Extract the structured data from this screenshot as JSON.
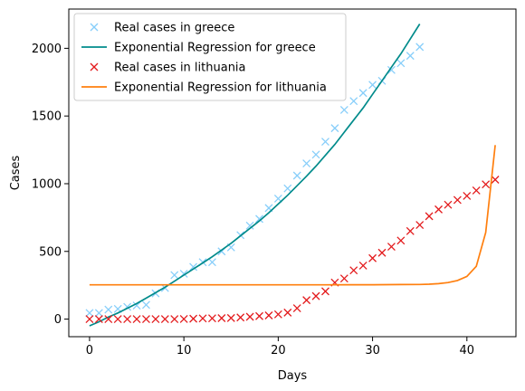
{
  "chart_data": {
    "type": "scatter",
    "title": "",
    "xlabel": "Days",
    "ylabel": "Cases",
    "xlim": [
      -2.2,
      45.2
    ],
    "ylim": [
      -130,
      2290
    ],
    "xticks": [
      0,
      10,
      20,
      30,
      40
    ],
    "yticks": [
      0,
      500,
      1000,
      1500,
      2000
    ],
    "grid": false,
    "legend_position": "top-left",
    "series": [
      {
        "name": "Real cases in greece",
        "kind": "markers",
        "marker": "x",
        "color": "#87cefa",
        "x": [
          0,
          1,
          2,
          3,
          4,
          5,
          6,
          7,
          8,
          9,
          10,
          11,
          12,
          13,
          14,
          15,
          16,
          17,
          18,
          19,
          20,
          21,
          22,
          23,
          24,
          25,
          26,
          27,
          28,
          29,
          30,
          31,
          32,
          33,
          34,
          35
        ],
        "y": [
          45,
          45,
          70,
          75,
          90,
          100,
          105,
          190,
          230,
          325,
          335,
          385,
          420,
          420,
          500,
          530,
          620,
          690,
          740,
          820,
          890,
          965,
          1060,
          1150,
          1215,
          1310,
          1410,
          1545,
          1610,
          1670,
          1730,
          1760,
          1840,
          1890,
          1945,
          2010
        ]
      },
      {
        "name": "Exponential Regression for greece",
        "kind": "line",
        "color": "#008b8b",
        "x": [
          0,
          1,
          2,
          3,
          4,
          5,
          6,
          7,
          8,
          9,
          10,
          11,
          12,
          13,
          14,
          15,
          16,
          17,
          18,
          19,
          20,
          21,
          22,
          23,
          24,
          25,
          26,
          27,
          28,
          29,
          30,
          31,
          32,
          33,
          34,
          35
        ],
        "y": [
          -50,
          -20,
          15,
          45,
          80,
          115,
          155,
          195,
          235,
          280,
          325,
          370,
          415,
          460,
          510,
          560,
          615,
          670,
          725,
          785,
          850,
          915,
          985,
          1055,
          1130,
          1210,
          1290,
          1380,
          1470,
          1560,
          1660,
          1760,
          1860,
          1960,
          2070,
          2180
        ]
      },
      {
        "name": "Real cases in lithuania",
        "kind": "markers",
        "marker": "x",
        "color": "#e31a1c",
        "x": [
          0,
          1,
          2,
          3,
          4,
          5,
          6,
          7,
          8,
          9,
          10,
          11,
          12,
          13,
          14,
          15,
          16,
          17,
          18,
          19,
          20,
          21,
          22,
          23,
          24,
          25,
          26,
          27,
          28,
          29,
          30,
          31,
          32,
          33,
          34,
          35,
          36,
          37,
          38,
          39,
          40,
          41,
          42,
          43
        ],
        "y": [
          0,
          0,
          0,
          0,
          0,
          0,
          0,
          0,
          0,
          0,
          1,
          3,
          5,
          6,
          7,
          8,
          12,
          17,
          22,
          27,
          35,
          48,
          80,
          140,
          170,
          205,
          270,
          300,
          360,
          395,
          450,
          490,
          535,
          580,
          650,
          695,
          760,
          810,
          845,
          880,
          910,
          950,
          995,
          1030
        ]
      },
      {
        "name": "Exponential Regression for lithuania",
        "kind": "line",
        "color": "#ff7f0e",
        "x": [
          0,
          5,
          10,
          15,
          20,
          25,
          30,
          33,
          35,
          36,
          37,
          38,
          39,
          40,
          41,
          42,
          43
        ],
        "y": [
          253,
          253,
          253,
          253,
          253,
          253,
          254,
          255,
          256,
          258,
          262,
          270,
          285,
          315,
          390,
          640,
          1285
        ]
      }
    ]
  }
}
